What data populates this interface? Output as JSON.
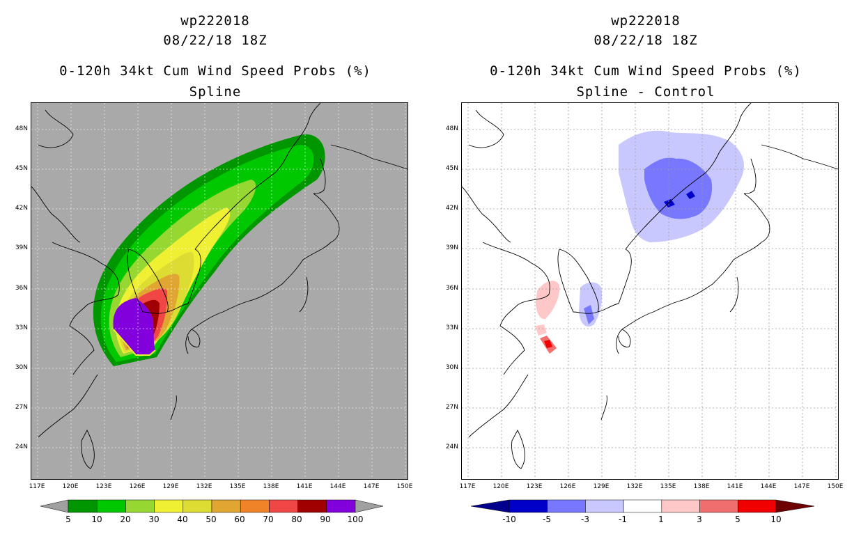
{
  "left": {
    "title_storm": "wp222018",
    "title_time": "08/22/18 18Z",
    "title_product": "0-120h 34kt Cum Wind Speed Probs (%)",
    "title_variant": "Spline",
    "colorbar": {
      "labels": [
        "5",
        "10",
        "20",
        "30",
        "40",
        "50",
        "60",
        "70",
        "80",
        "90",
        "100"
      ],
      "colors": [
        "#009600",
        "#00c800",
        "#96d732",
        "#f0f032",
        "#dcdc32",
        "#e1a532",
        "#f08228",
        "#f04646",
        "#a00000",
        "#8200dc"
      ],
      "arrow_color": "#a0a0a0"
    },
    "background_color": "#a9a9a9"
  },
  "right": {
    "title_storm": "wp222018",
    "title_time": "08/22/18 18Z",
    "title_product": "0-120h 34kt Cum Wind Speed Probs (%)",
    "title_variant": "Spline - Control",
    "colorbar": {
      "labels": [
        "-10",
        "-5",
        "-3",
        "-1",
        "1",
        "3",
        "5",
        "10"
      ],
      "colors": [
        "#0000c8",
        "#7878ff",
        "#c8c8ff",
        "#ffffff",
        "#ffc8c8",
        "#f06e6e",
        "#f00000"
      ],
      "arrow_left_color": "#00008c",
      "arrow_right_color": "#6e0000"
    }
  },
  "axes": {
    "lat_labels": [
      "48N",
      "45N",
      "42N",
      "39N",
      "36N",
      "33N",
      "30N",
      "27N",
      "24N"
    ],
    "lon_labels": [
      "117E",
      "120E",
      "123E",
      "126E",
      "129E",
      "132E",
      "135E",
      "138E",
      "141E",
      "144E",
      "147E",
      "150E"
    ]
  },
  "chart_data": {
    "type": "map",
    "domain": {
      "lon_range": [
        116.5,
        150.5
      ],
      "lat_range": [
        21.0,
        50.0
      ]
    },
    "grid": true,
    "left_field": "34kt cumulative wind speed probability (%), track from ~32N 126E to ~46N 143E",
    "right_field": "difference Spline - Control (%): negative over NE China / Russia 41-46N 133-140E and SE Korea, positive west of Korea 31-36N 124-125E"
  }
}
